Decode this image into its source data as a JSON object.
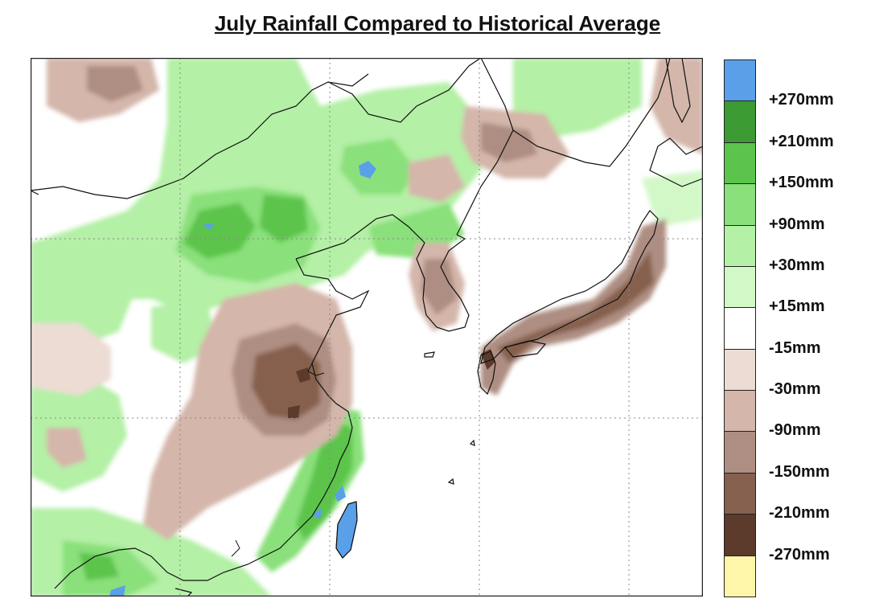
{
  "title": "July Rainfall Compared to Historical Average",
  "legend": {
    "colors": [
      "#5aa0e8",
      "#3c9a32",
      "#5cc44c",
      "#8ae07a",
      "#b4f0a6",
      "#d2f8c8",
      "#ffffff",
      "#ecdcd4",
      "#d4b6aa",
      "#ae8e82",
      "#86604e",
      "#5c3a2c",
      "#fff6aa"
    ],
    "labels": [
      "+270mm",
      "+210mm",
      "+150mm",
      "+90mm",
      "+30mm",
      "+15mm",
      "-15mm",
      "-30mm",
      "-90mm",
      "-150mm",
      "-210mm",
      "-270mm"
    ]
  }
}
